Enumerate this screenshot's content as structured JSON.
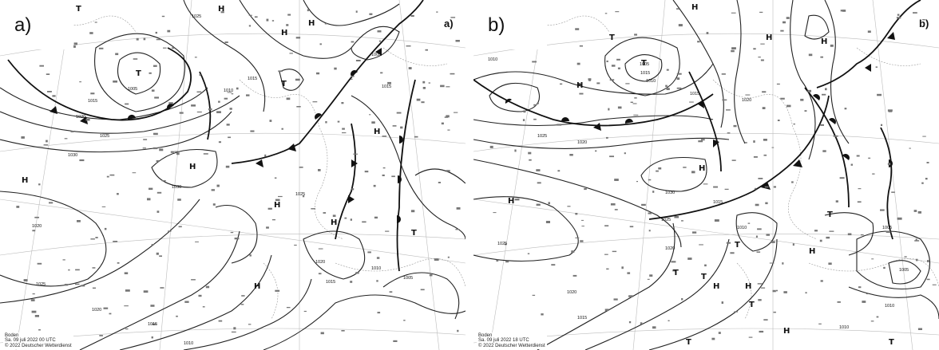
{
  "panels": [
    {
      "label": "a)",
      "corner_label": "a)",
      "footer": [
        "Boden",
        "Sa. 09 juli 2022 00 UTC",
        "© 2022 Deutscher Wetterdienst"
      ],
      "isobars": [
        "1010",
        "1025",
        "1015",
        "1010",
        "1005",
        "1015",
        "1020",
        "1025",
        "1030",
        "1020",
        "1030",
        "1025",
        "1020",
        "1015",
        "1010",
        "1005",
        "1015",
        "1025",
        "1015",
        "1020",
        "1010",
        "1005"
      ],
      "pressure_centers": [
        {
          "type": "H"
        },
        {
          "type": "H"
        },
        {
          "type": "H"
        },
        {
          "type": "T"
        },
        {
          "type": "T"
        },
        {
          "type": "H"
        },
        {
          "type": "H"
        },
        {
          "type": "H"
        },
        {
          "type": "H"
        },
        {
          "type": "H"
        },
        {
          "type": "T"
        },
        {
          "type": "H"
        },
        {
          "type": "T"
        }
      ]
    },
    {
      "label": "b)",
      "corner_label": "b)",
      "footer": [
        "Boden",
        "Sa. 09 juli 2022 18 UTC",
        "© 2022 Deutscher Wetterdienst"
      ],
      "isobars": [
        "1010",
        "1005",
        "1015",
        "1010",
        "1015",
        "1020",
        "1025",
        "1020",
        "1030",
        "1025",
        "1020",
        "1015",
        "1010",
        "1020",
        "1015",
        "1025",
        "1005",
        "1005",
        "1010",
        "1010"
      ],
      "pressure_centers": [
        {
          "type": "H"
        },
        {
          "type": "T"
        },
        {
          "type": "H"
        },
        {
          "type": "T"
        },
        {
          "type": "H"
        },
        {
          "type": "H"
        },
        {
          "type": "H"
        },
        {
          "type": "H"
        },
        {
          "type": "T"
        },
        {
          "type": "T"
        },
        {
          "type": "H"
        },
        {
          "type": "T"
        },
        {
          "type": "H"
        },
        {
          "type": "T"
        },
        {
          "type": "T"
        },
        {
          "type": "H"
        },
        {
          "type": "H"
        },
        {
          "type": "T"
        },
        {
          "type": "T"
        }
      ]
    }
  ]
}
